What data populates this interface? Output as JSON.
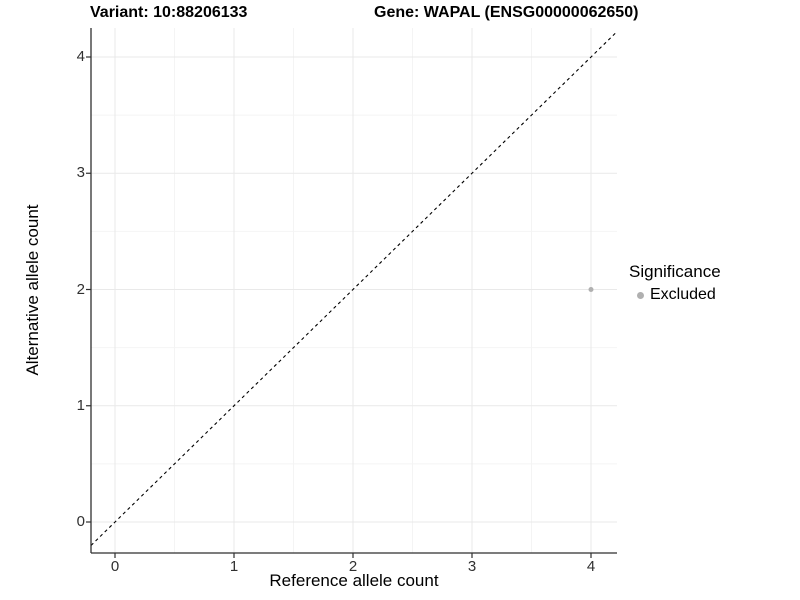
{
  "page": {
    "background": "#ffffff"
  },
  "titles": {
    "variant": "Variant: 10:88206133",
    "gene": "Gene: WAPAL (ENSG00000062650)"
  },
  "axes": {
    "x": {
      "label": "Reference allele count"
    },
    "y": {
      "label": "Alternative allele count"
    }
  },
  "legend": {
    "title": "Significance",
    "items": [
      {
        "label": "Excluded",
        "color": "#b0b0b0"
      }
    ]
  },
  "chart_data": {
    "type": "scatter",
    "title": "Variant: 10:88206133    Gene: WAPAL (ENSG00000062650)",
    "xlabel": "Reference allele count",
    "ylabel": "Alternative allele count",
    "xlim": [
      -0.2,
      4.22
    ],
    "ylim": [
      -0.27,
      4.25
    ],
    "x_ticks": [
      0,
      1,
      2,
      3,
      4
    ],
    "y_ticks": [
      0,
      1,
      2,
      3,
      4
    ],
    "series": [
      {
        "name": "Excluded",
        "color": "#b0b0b0",
        "points": [
          {
            "x": 4,
            "y": 2
          }
        ]
      }
    ],
    "annotations": {
      "identity_line": {
        "slope": 1,
        "intercept": 0,
        "style": "dashed",
        "color": "#000000"
      }
    },
    "grid": {
      "major_color": "#e9e9e9",
      "minor_color": "#f4f4f4",
      "minor": "between-majors"
    },
    "legend_position": "right",
    "legend_title": "Significance"
  },
  "styles": {
    "axis_line_color": "#2f2f2f",
    "tick_label_color": "#303030"
  }
}
